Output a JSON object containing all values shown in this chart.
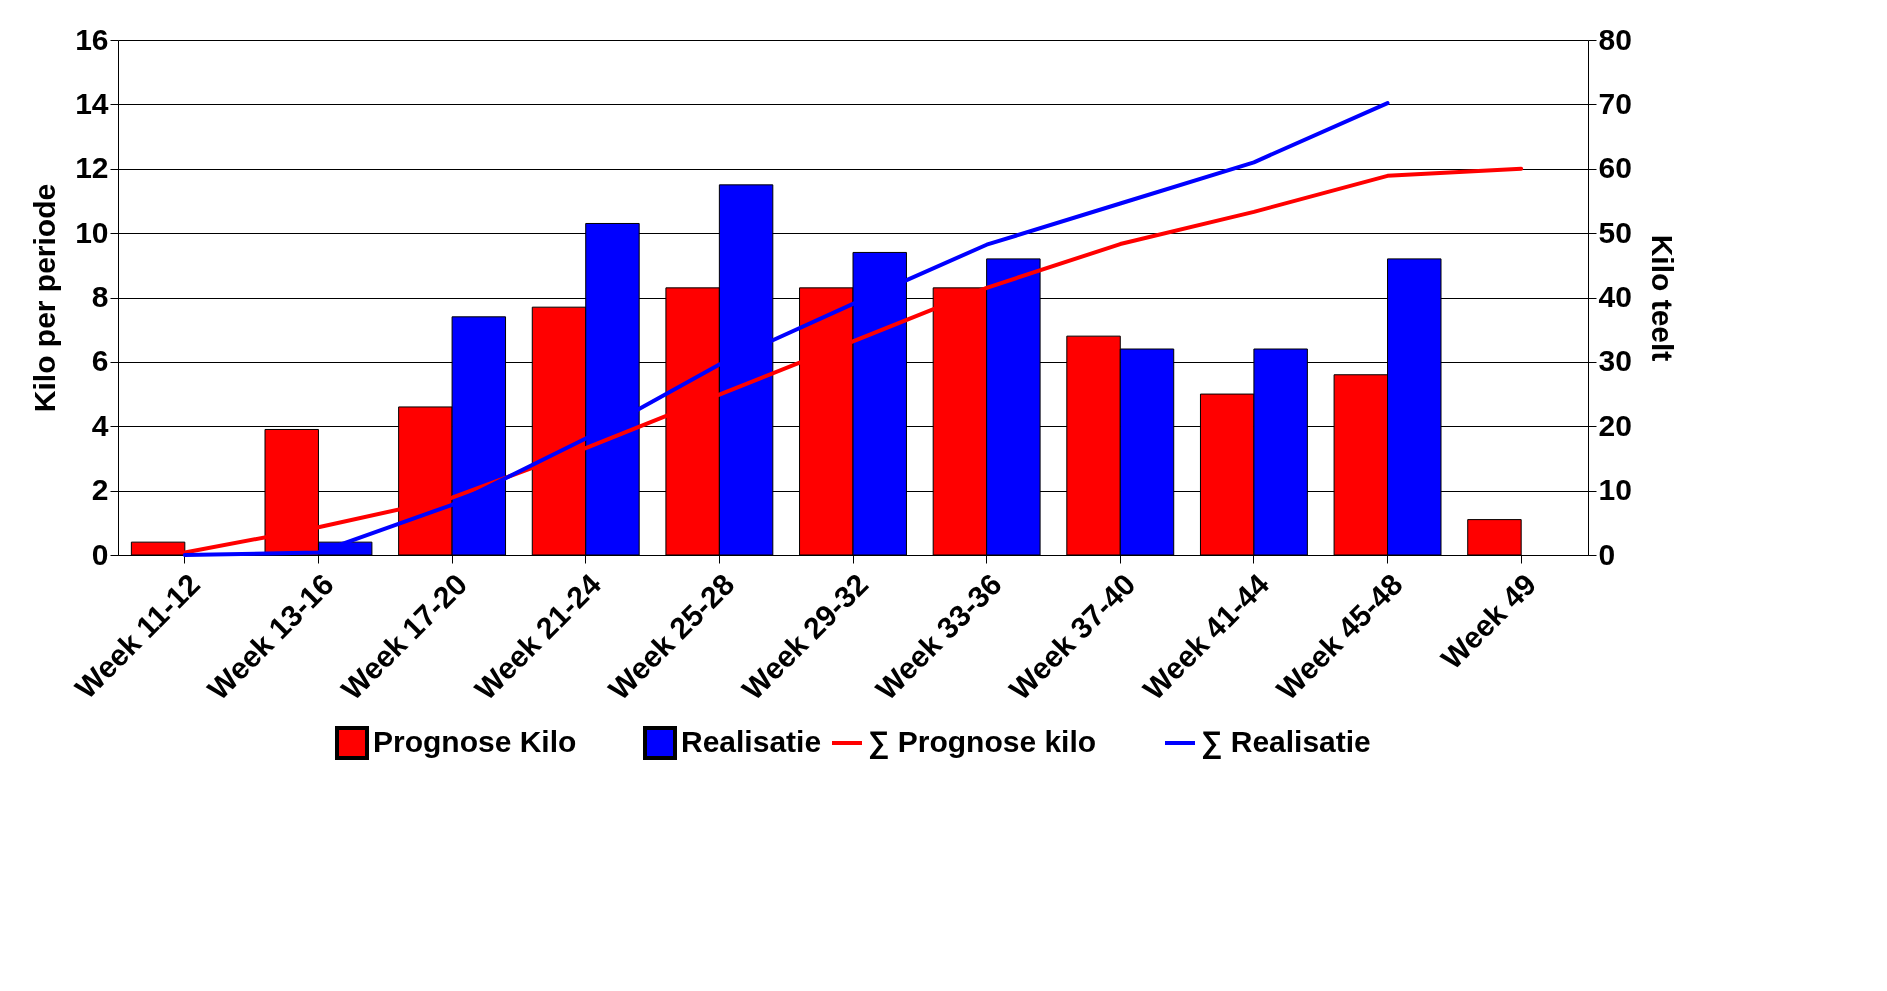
{
  "chart_data": {
    "type": "bar",
    "categories": [
      "Week 11-12",
      "Week 13-16",
      "Week 17-20",
      "Week 21-24",
      "Week 25-28",
      "Week 29-32",
      "Week 33-36",
      "Week 37-40",
      "Week 41-44",
      "Week 45-48",
      "Week 49"
    ],
    "ylabel": "Kilo per periode",
    "y2label": "Kilo teelt",
    "ylim": [
      0,
      16
    ],
    "yticks": [
      0,
      2,
      4,
      6,
      8,
      10,
      12,
      14,
      16
    ],
    "y2lim": [
      0,
      80
    ],
    "y2ticks": [
      0,
      10,
      20,
      30,
      40,
      50,
      60,
      70,
      80
    ],
    "grid": "y",
    "legend": "bottom",
    "series": [
      {
        "name": "Prognose Kilo",
        "color": "#ff0000",
        "values": [
          0.4,
          3.9,
          4.6,
          7.7,
          8.3,
          8.3,
          8.3,
          6.8,
          5.0,
          5.6,
          1.1
        ]
      },
      {
        "name": "Realisatie",
        "color": "#0000ff",
        "values": [
          null,
          0.4,
          7.4,
          10.3,
          11.5,
          9.4,
          9.2,
          6.4,
          6.4,
          9.2,
          null
        ]
      },
      {
        "name": "∑ Prognose kilo",
        "type": "line",
        "axis": "y2",
        "color": "#ff0000",
        "values": [
          0.4,
          4.3,
          8.9,
          16.6,
          24.9,
          33.2,
          41.5,
          48.3,
          53.3,
          58.9,
          60.0
        ]
      },
      {
        "name": "∑ Realisatie",
        "type": "line",
        "axis": "y2",
        "color": "#0000ff",
        "values": [
          0,
          0.4,
          7.8,
          18.1,
          29.6,
          39.0,
          48.2,
          54.6,
          61.0,
          70.2,
          null
        ]
      }
    ]
  }
}
